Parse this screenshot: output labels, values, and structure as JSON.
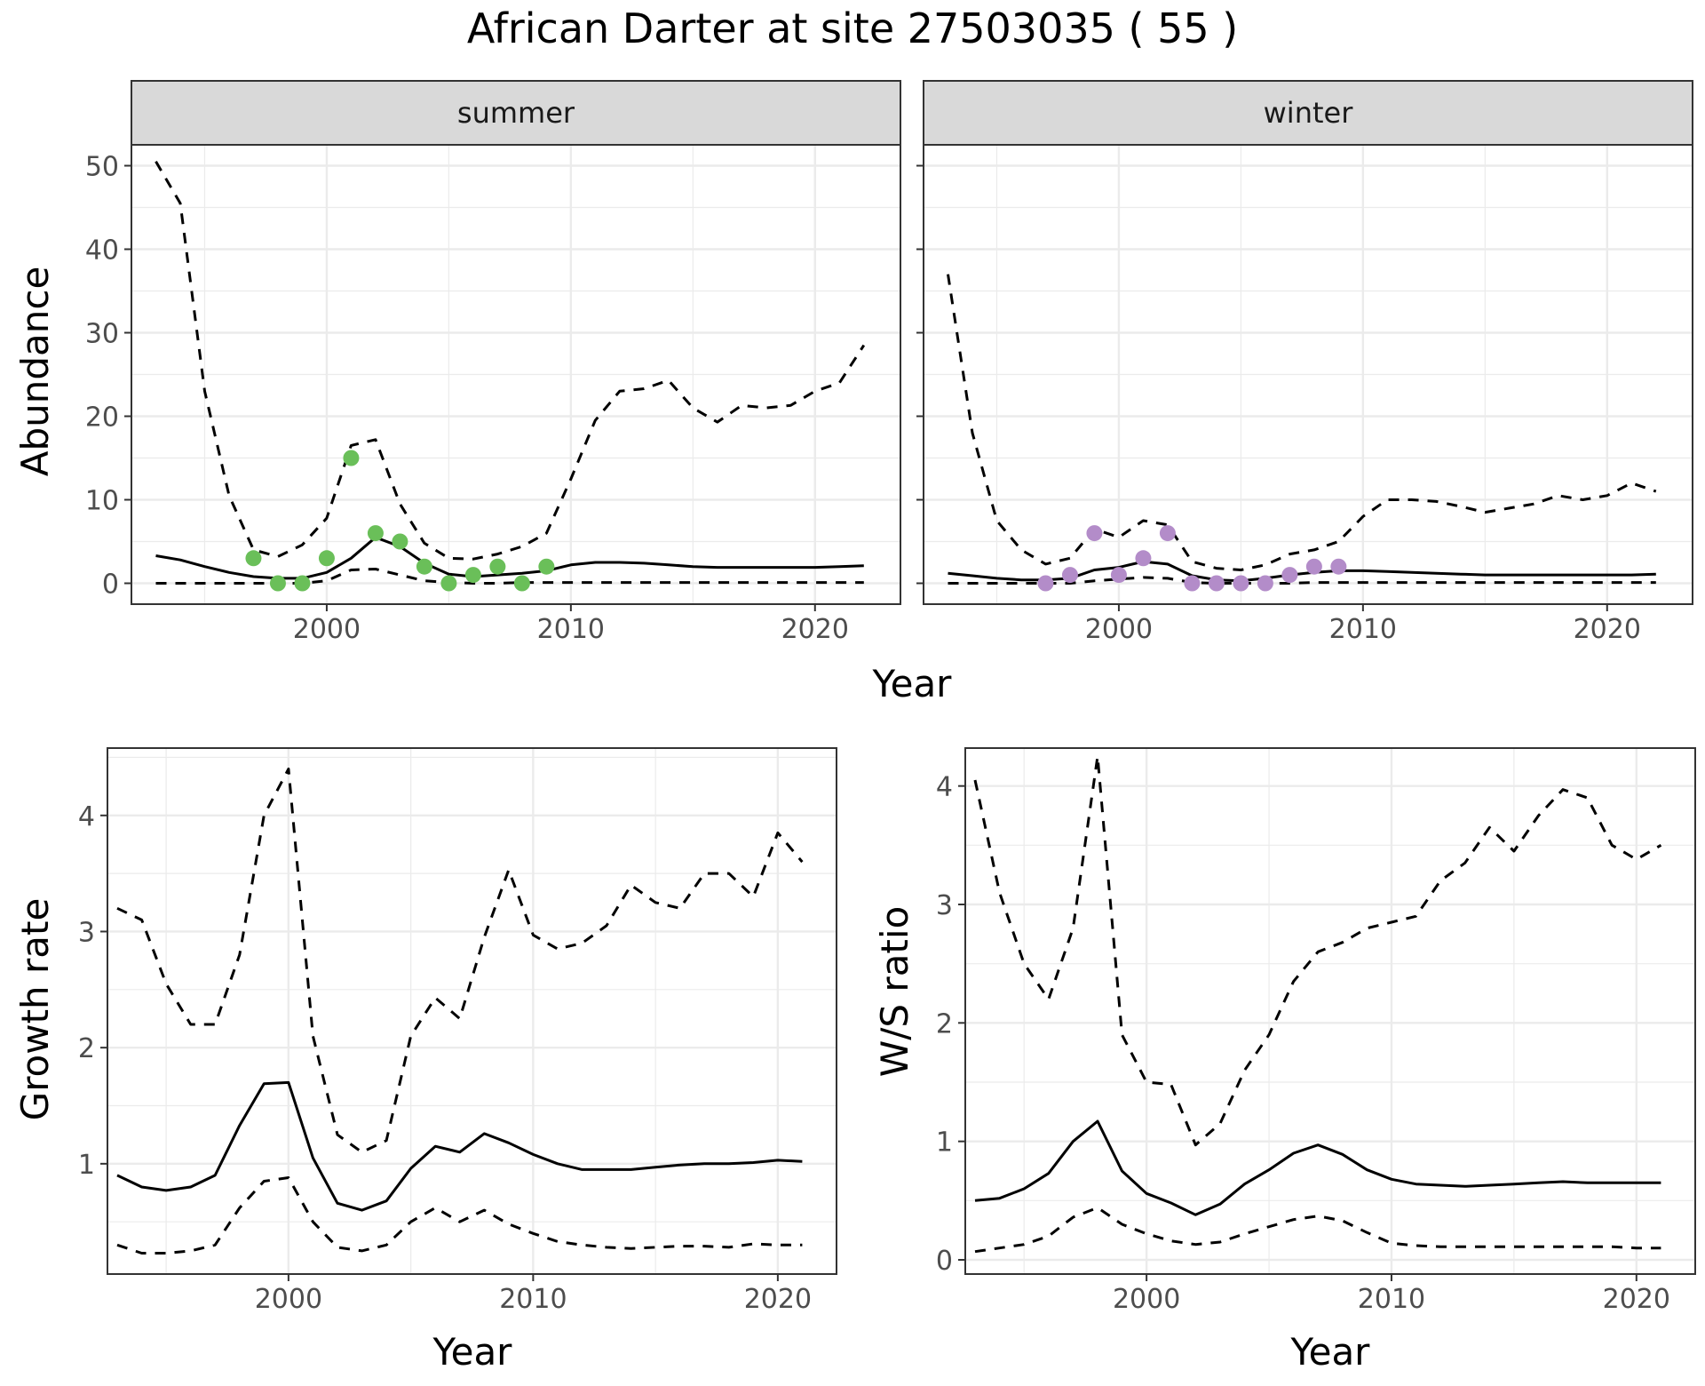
{
  "title": "African Darter at site 27503035 ( 55 )",
  "colors": {
    "summer_points": "#6ABF59",
    "winter_points": "#B38CC9"
  },
  "chart_data": [
    {
      "id": "abundance",
      "type": "line",
      "ylabel": "Abundance",
      "xlabel": "Year",
      "xlim": [
        1992,
        2023.5
      ],
      "ylim": [
        -2.5,
        52.5
      ],
      "x_ticks": [
        2000,
        2010,
        2020
      ],
      "y_ticks": [
        0,
        10,
        20,
        30,
        40,
        50
      ],
      "grid": true,
      "facets": [
        {
          "label": "summer",
          "series": [
            {
              "style": "solid",
              "x": [
                1993,
                1994,
                1995,
                1996,
                1997,
                1998,
                1999,
                2000,
                2001,
                2002,
                2003,
                2004,
                2005,
                2006,
                2007,
                2008,
                2009,
                2010,
                2011,
                2012,
                2013,
                2014,
                2015,
                2016,
                2017,
                2018,
                2019,
                2020,
                2021,
                2022
              ],
              "y": [
                3.3,
                2.8,
                2.0,
                1.3,
                0.8,
                0.6,
                0.6,
                1.3,
                3.0,
                5.5,
                4.4,
                2.4,
                1.1,
                0.8,
                1.0,
                1.2,
                1.5,
                2.2,
                2.5,
                2.5,
                2.4,
                2.2,
                2.0,
                1.9,
                1.9,
                1.9,
                1.9,
                1.9,
                2.0,
                2.1
              ]
            },
            {
              "style": "dashed",
              "x": [
                1993,
                1994,
                1995,
                1996,
                1997,
                1998,
                1999,
                2000,
                2001,
                2002,
                2003,
                2004,
                2005,
                2006,
                2007,
                2008,
                2009,
                2010,
                2011,
                2012,
                2013,
                2014,
                2015,
                2016,
                2017,
                2018,
                2019,
                2020,
                2021,
                2022
              ],
              "y": [
                50.5,
                45.5,
                23.0,
                10.5,
                4.0,
                3.2,
                4.6,
                7.8,
                16.5,
                17.2,
                9.5,
                4.8,
                3.0,
                2.9,
                3.5,
                4.4,
                6.0,
                12.5,
                19.5,
                23.0,
                23.3,
                24.3,
                21.0,
                19.3,
                21.3,
                21.0,
                21.3,
                23.0,
                24.0,
                28.5
              ]
            },
            {
              "style": "dashed",
              "x": [
                1993,
                1994,
                1995,
                1996,
                1997,
                1998,
                1999,
                2000,
                2001,
                2002,
                2003,
                2004,
                2005,
                2006,
                2007,
                2008,
                2009,
                2010,
                2011,
                2012,
                2013,
                2014,
                2015,
                2016,
                2017,
                2018,
                2019,
                2020,
                2021,
                2022
              ],
              "y": [
                0,
                0,
                0,
                0,
                0,
                0,
                0,
                0.3,
                1.6,
                1.7,
                1.0,
                0.3,
                0.1,
                0,
                0,
                0.1,
                0.1,
                0.1,
                0.1,
                0.1,
                0.1,
                0.1,
                0.1,
                0.1,
                0.1,
                0.1,
                0.1,
                0.1,
                0.1,
                0.1
              ]
            }
          ],
          "points": {
            "color_key": "summer_points",
            "x": [
              1997,
              1998,
              1999,
              2000,
              2001,
              2002,
              2003,
              2004,
              2005,
              2006,
              2007,
              2008,
              2009
            ],
            "y": [
              3,
              0,
              0,
              3,
              15,
              6,
              5,
              2,
              0,
              1,
              2,
              0,
              2
            ]
          }
        },
        {
          "label": "winter",
          "series": [
            {
              "style": "solid",
              "x": [
                1993,
                1994,
                1995,
                1996,
                1997,
                1998,
                1999,
                2000,
                2001,
                2002,
                2003,
                2004,
                2005,
                2006,
                2007,
                2008,
                2009,
                2010,
                2011,
                2012,
                2013,
                2014,
                2015,
                2016,
                2017,
                2018,
                2019,
                2020,
                2021,
                2022
              ],
              "y": [
                1.2,
                0.9,
                0.6,
                0.4,
                0.4,
                0.6,
                1.6,
                1.9,
                2.6,
                2.3,
                0.9,
                0.4,
                0.3,
                0.6,
                1.0,
                1.3,
                1.5,
                1.5,
                1.4,
                1.3,
                1.2,
                1.1,
                1.0,
                1.0,
                1.0,
                1.0,
                1.0,
                1.0,
                1.0,
                1.1
              ]
            },
            {
              "style": "dashed",
              "x": [
                1993,
                1994,
                1995,
                1996,
                1997,
                1998,
                1999,
                2000,
                2001,
                2002,
                2003,
                2004,
                2005,
                2006,
                2007,
                2008,
                2009,
                2010,
                2011,
                2012,
                2013,
                2014,
                2015,
                2016,
                2017,
                2018,
                2019,
                2020,
                2021,
                2022
              ],
              "y": [
                37.0,
                18.0,
                7.5,
                4.0,
                2.3,
                3.0,
                6.5,
                5.5,
                7.5,
                7.0,
                2.6,
                1.8,
                1.6,
                2.2,
                3.5,
                4.0,
                5.0,
                8.0,
                10.0,
                10.0,
                9.8,
                9.2,
                8.5,
                9.0,
                9.5,
                10.5,
                10.0,
                10.5,
                12.0,
                11.0
              ]
            },
            {
              "style": "dashed",
              "x": [
                1993,
                1994,
                1995,
                1996,
                1997,
                1998,
                1999,
                2000,
                2001,
                2002,
                2003,
                2004,
                2005,
                2006,
                2007,
                2008,
                2009,
                2010,
                2011,
                2012,
                2013,
                2014,
                2015,
                2016,
                2017,
                2018,
                2019,
                2020,
                2021,
                2022
              ],
              "y": [
                0,
                0,
                0,
                0,
                0,
                0,
                0.3,
                0.5,
                0.7,
                0.6,
                0.1,
                0,
                0,
                0,
                0,
                0.1,
                0.1,
                0.1,
                0.1,
                0.1,
                0.1,
                0.1,
                0.1,
                0.1,
                0.1,
                0.1,
                0.1,
                0.1,
                0.1,
                0.1
              ]
            }
          ],
          "points": {
            "color_key": "winter_points",
            "x": [
              1997,
              1998,
              1999,
              2000,
              2001,
              2002,
              2003,
              2004,
              2005,
              2006,
              2007,
              2008,
              2009
            ],
            "y": [
              0,
              1,
              6,
              1,
              3,
              6,
              0,
              0,
              0,
              0,
              1,
              2,
              2
            ]
          }
        }
      ]
    },
    {
      "id": "growth",
      "type": "line",
      "ylabel": "Growth rate",
      "xlabel": "Year",
      "xlim": [
        1992.6,
        2022.4
      ],
      "ylim": [
        0.05,
        4.58
      ],
      "x_ticks": [
        2000,
        2010,
        2020
      ],
      "y_ticks": [
        1,
        2,
        3,
        4
      ],
      "grid": true,
      "series": [
        {
          "style": "solid",
          "x": [
            1993,
            1994,
            1995,
            1996,
            1997,
            1998,
            1999,
            2000,
            2001,
            2002,
            2003,
            2004,
            2005,
            2006,
            2007,
            2008,
            2009,
            2010,
            2011,
            2012,
            2013,
            2014,
            2015,
            2016,
            2017,
            2018,
            2019,
            2020,
            2021
          ],
          "y": [
            0.9,
            0.8,
            0.77,
            0.8,
            0.9,
            1.33,
            1.69,
            1.7,
            1.05,
            0.66,
            0.6,
            0.68,
            0.96,
            1.15,
            1.1,
            1.26,
            1.18,
            1.08,
            1.0,
            0.95,
            0.95,
            0.95,
            0.97,
            0.99,
            1.0,
            1.0,
            1.01,
            1.03,
            1.02
          ]
        },
        {
          "style": "dashed",
          "x": [
            1993,
            1994,
            1995,
            1996,
            1997,
            1998,
            1999,
            2000,
            2001,
            2002,
            2003,
            2004,
            2005,
            2006,
            2007,
            2008,
            2009,
            2010,
            2011,
            2012,
            2013,
            2014,
            2015,
            2016,
            2017,
            2018,
            2019,
            2020,
            2021
          ],
          "y": [
            3.2,
            3.1,
            2.55,
            2.2,
            2.2,
            2.8,
            4.0,
            4.4,
            2.1,
            1.25,
            1.1,
            1.2,
            2.1,
            2.43,
            2.25,
            2.95,
            3.53,
            2.97,
            2.85,
            2.9,
            3.05,
            3.4,
            3.25,
            3.2,
            3.5,
            3.5,
            3.3,
            3.85,
            3.6
          ]
        },
        {
          "style": "dashed",
          "x": [
            1993,
            1994,
            1995,
            1996,
            1997,
            1998,
            1999,
            2000,
            2001,
            2002,
            2003,
            2004,
            2005,
            2006,
            2007,
            2008,
            2009,
            2010,
            2011,
            2012,
            2013,
            2014,
            2015,
            2016,
            2017,
            2018,
            2019,
            2020,
            2021
          ],
          "y": [
            0.3,
            0.23,
            0.23,
            0.25,
            0.3,
            0.62,
            0.85,
            0.88,
            0.5,
            0.28,
            0.25,
            0.3,
            0.5,
            0.62,
            0.5,
            0.6,
            0.48,
            0.4,
            0.33,
            0.3,
            0.28,
            0.27,
            0.28,
            0.29,
            0.29,
            0.28,
            0.31,
            0.3,
            0.3
          ]
        }
      ]
    },
    {
      "id": "ws",
      "type": "line",
      "ylabel": "W/S ratio",
      "xlabel": "Year",
      "xlim": [
        1992.6,
        2022.4
      ],
      "ylim": [
        -0.12,
        4.32
      ],
      "x_ticks": [
        2000,
        2010,
        2020
      ],
      "y_ticks": [
        0,
        1,
        2,
        3,
        4
      ],
      "grid": true,
      "series": [
        {
          "style": "solid",
          "x": [
            1993,
            1994,
            1995,
            1996,
            1997,
            1998,
            1999,
            2000,
            2001,
            2002,
            2003,
            2004,
            2005,
            2006,
            2007,
            2008,
            2009,
            2010,
            2011,
            2012,
            2013,
            2014,
            2015,
            2016,
            2017,
            2018,
            2019,
            2020,
            2021
          ],
          "y": [
            0.5,
            0.52,
            0.6,
            0.73,
            1.0,
            1.17,
            0.75,
            0.56,
            0.48,
            0.38,
            0.47,
            0.64,
            0.76,
            0.9,
            0.97,
            0.89,
            0.76,
            0.68,
            0.64,
            0.63,
            0.62,
            0.63,
            0.64,
            0.65,
            0.66,
            0.65,
            0.65,
            0.65,
            0.65
          ]
        },
        {
          "style": "dashed",
          "x": [
            1993,
            1994,
            1995,
            1996,
            1997,
            1998,
            1999,
            2000,
            2001,
            2002,
            2003,
            2004,
            2005,
            2006,
            2007,
            2008,
            2009,
            2010,
            2011,
            2012,
            2013,
            2014,
            2015,
            2016,
            2017,
            2018,
            2019,
            2020,
            2021
          ],
          "y": [
            4.05,
            3.1,
            2.5,
            2.2,
            2.8,
            4.25,
            1.9,
            1.5,
            1.48,
            0.97,
            1.15,
            1.6,
            1.9,
            2.35,
            2.6,
            2.68,
            2.8,
            2.85,
            2.9,
            3.2,
            3.35,
            3.65,
            3.45,
            3.75,
            3.97,
            3.9,
            3.5,
            3.38,
            3.5
          ]
        },
        {
          "style": "dashed",
          "x": [
            1993,
            1994,
            1995,
            1996,
            1997,
            1998,
            1999,
            2000,
            2001,
            2002,
            2003,
            2004,
            2005,
            2006,
            2007,
            2008,
            2009,
            2010,
            2011,
            2012,
            2013,
            2014,
            2015,
            2016,
            2017,
            2018,
            2019,
            2020,
            2021
          ],
          "y": [
            0.07,
            0.1,
            0.13,
            0.2,
            0.36,
            0.44,
            0.3,
            0.22,
            0.16,
            0.13,
            0.15,
            0.22,
            0.28,
            0.34,
            0.37,
            0.33,
            0.23,
            0.14,
            0.12,
            0.11,
            0.11,
            0.11,
            0.11,
            0.11,
            0.11,
            0.11,
            0.11,
            0.1,
            0.1
          ]
        }
      ]
    }
  ]
}
